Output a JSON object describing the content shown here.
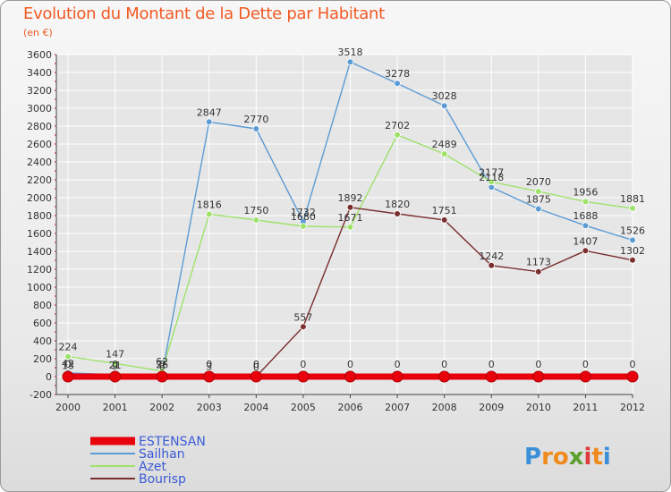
{
  "header": {
    "title": "Evolution du Montant de la Dette par Habitant",
    "subtitle": "(en €)"
  },
  "logo": {
    "text": "Proxiti"
  },
  "colors": {
    "title": "#f15a24",
    "axis": "#444444",
    "grid": "#ffffff",
    "axis_ticks_red": "#e01020"
  },
  "chart_data": {
    "type": "line",
    "x": [
      "2000",
      "2001",
      "2002",
      "2003",
      "2004",
      "2005",
      "2006",
      "2007",
      "2008",
      "2009",
      "2010",
      "2011",
      "2012"
    ],
    "ylim": [
      -200,
      3600
    ],
    "yticks": [
      -200,
      0,
      200,
      400,
      600,
      800,
      1000,
      1200,
      1400,
      1600,
      1800,
      2000,
      2200,
      2400,
      2600,
      2800,
      3000,
      3200,
      3400,
      3600
    ],
    "xlabel": "",
    "ylabel": "",
    "grid": true,
    "legend_position": "bottom-left",
    "series": [
      {
        "name": "ESTENSAN",
        "color": "#e8000b",
        "values": [
          0,
          0,
          0,
          0,
          0,
          0,
          0,
          0,
          0,
          0,
          0,
          0,
          0
        ],
        "labels": [
          "0",
          "0",
          "0",
          "0",
          "0",
          "0",
          "0",
          "0",
          "0",
          "0",
          "0",
          "0",
          "0"
        ]
      },
      {
        "name": "Sailhan",
        "color": "#5b9bd5",
        "values": [
          42,
          21,
          26,
          2847,
          2770,
          1732,
          3518,
          3278,
          3028,
          2118,
          1875,
          1688,
          1526
        ],
        "labels": [
          "42",
          "21",
          "26",
          "2847",
          "2770",
          "1732",
          "3518",
          "3278",
          "3028",
          "2118",
          "1875",
          "1688",
          "1526"
        ]
      },
      {
        "name": "Azet",
        "color": "#9ee26a",
        "values": [
          224,
          147,
          62,
          1816,
          1750,
          1680,
          1671,
          2702,
          2489,
          2177,
          2070,
          1956,
          1881
        ],
        "labels": [
          "224",
          "147",
          "62",
          "1816",
          "1750",
          "1680",
          "1671",
          "2702",
          "2489",
          "2177",
          "2070",
          "1956",
          "1881"
        ]
      },
      {
        "name": "Bourisp",
        "color": "#7a2e2e",
        "values": [
          13,
          9,
          6,
          3,
          0,
          557,
          1892,
          1820,
          1751,
          1242,
          1173,
          1407,
          1302
        ],
        "labels": [
          "13",
          "9",
          "6",
          "3",
          "0",
          "557",
          "1892",
          "1820",
          "1751",
          "1242",
          "1173",
          "1407",
          "1302"
        ]
      }
    ]
  }
}
